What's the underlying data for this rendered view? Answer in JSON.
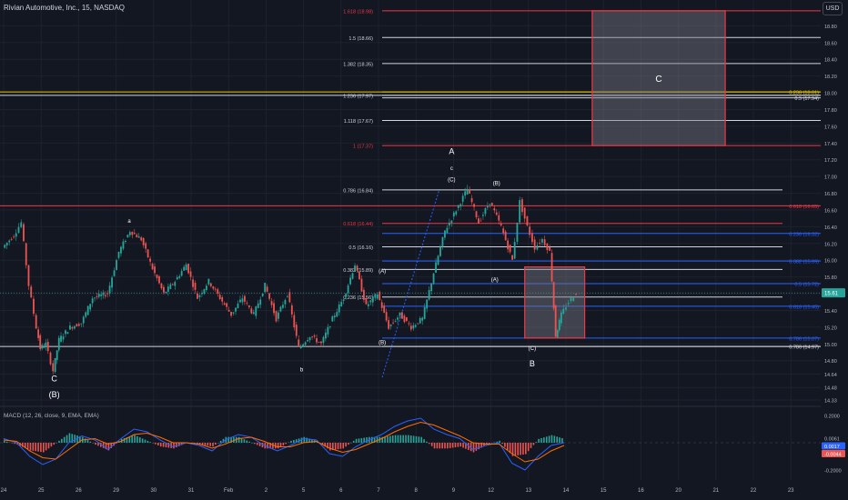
{
  "header": {
    "symbol_line": "Rivian Automotive, Inc., 15, NASDAQ",
    "currency": "USD"
  },
  "colors": {
    "background": "#131722",
    "grid": "#1e222d",
    "up": "#26a69a",
    "down": "#ef5350",
    "fib_white": "#d1d4dc",
    "fib_red": "#f23645",
    "fib_blue": "#2962ff",
    "fib_yellow": "#e6c200",
    "box_fill": "#787b86",
    "macd_line": "#2962ff",
    "signal_line": "#ff6d00"
  },
  "chart_data": [
    {
      "type": "candlestick",
      "name": "price",
      "x_ticks": [
        "24",
        "25",
        "26",
        "29",
        "30",
        "31",
        "Feb",
        "2",
        "5",
        "6",
        "7",
        "8",
        "9",
        "12",
        "13",
        "14",
        "15",
        "16",
        "20",
        "21",
        "22",
        "23"
      ],
      "y_ticks": [
        18.8,
        18.6,
        18.4,
        18.2,
        18.0,
        17.8,
        17.6,
        17.4,
        17.2,
        17.0,
        16.8,
        16.6,
        16.4,
        16.2,
        16.0,
        15.8,
        15.6,
        15.4,
        15.2,
        15.0,
        14.8,
        14.64,
        14.48,
        14.33
      ],
      "ylim": [
        14.33,
        19.0
      ],
      "last_price": "15.61",
      "price_path": [
        [
          0,
          16.15
        ],
        [
          0.3,
          16.3
        ],
        [
          0.5,
          16.45
        ],
        [
          0.7,
          15.7
        ],
        [
          0.9,
          15.2
        ],
        [
          1.0,
          14.95
        ],
        [
          1.15,
          15.0
        ],
        [
          1.35,
          14.68
        ],
        [
          1.5,
          15.05
        ],
        [
          1.8,
          15.2
        ],
        [
          2.1,
          15.25
        ],
        [
          2.4,
          15.55
        ],
        [
          2.8,
          15.6
        ],
        [
          3.1,
          16.1
        ],
        [
          3.4,
          16.35
        ],
        [
          3.7,
          16.25
        ],
        [
          4.0,
          15.9
        ],
        [
          4.3,
          15.6
        ],
        [
          4.6,
          15.75
        ],
        [
          4.9,
          15.95
        ],
        [
          5.2,
          15.55
        ],
        [
          5.5,
          15.75
        ],
        [
          5.8,
          15.55
        ],
        [
          6.1,
          15.35
        ],
        [
          6.4,
          15.55
        ],
        [
          6.7,
          15.35
        ],
        [
          7.0,
          15.7
        ],
        [
          7.3,
          15.3
        ],
        [
          7.6,
          15.6
        ],
        [
          7.9,
          14.95
        ],
        [
          8.2,
          15.1
        ],
        [
          8.5,
          15.0
        ],
        [
          8.8,
          15.3
        ],
        [
          9.1,
          15.55
        ],
        [
          9.4,
          15.95
        ],
        [
          9.7,
          15.45
        ],
        [
          10.0,
          15.6
        ],
        [
          10.3,
          15.2
        ],
        [
          10.6,
          15.35
        ],
        [
          10.9,
          15.2
        ],
        [
          11.2,
          15.3
        ],
        [
          11.5,
          15.85
        ],
        [
          11.8,
          16.35
        ],
        [
          12.1,
          16.6
        ],
        [
          12.4,
          16.85
        ],
        [
          12.7,
          16.45
        ],
        [
          13.0,
          16.7
        ],
        [
          13.3,
          16.4
        ],
        [
          13.6,
          16.0
        ],
        [
          13.8,
          16.7
        ],
        [
          14.0,
          16.4
        ],
        [
          14.2,
          16.15
        ],
        [
          14.4,
          16.25
        ],
        [
          14.6,
          16.1
        ],
        [
          14.75,
          15.1
        ],
        [
          14.9,
          15.35
        ],
        [
          15.1,
          15.5
        ],
        [
          15.3,
          15.61
        ]
      ],
      "fib_levels": [
        {
          "label": "1.618 (18.98)",
          "price": 18.98,
          "color": "red",
          "side": "left"
        },
        {
          "label": "1.5 (18.66)",
          "price": 18.66,
          "color": "white",
          "side": "left"
        },
        {
          "label": "1.382 (18.35)",
          "price": 18.35,
          "color": "white",
          "side": "left"
        },
        {
          "label": "1.236 (17.97)",
          "price": 17.97,
          "color": "white",
          "side": "left"
        },
        {
          "label": "1.118 (17.67)",
          "price": 17.67,
          "color": "white",
          "side": "left"
        },
        {
          "label": "1 (17.37)",
          "price": 17.37,
          "color": "red",
          "side": "left"
        },
        {
          "label": "0.786 (16.84)",
          "price": 16.84,
          "color": "white",
          "side": "left"
        },
        {
          "label": "0.618 (16.44)",
          "price": 16.44,
          "color": "red",
          "side": "left"
        },
        {
          "label": "0.5 (16.16)",
          "price": 16.16,
          "color": "white",
          "side": "left"
        },
        {
          "label": "0.382 (15.89)",
          "price": 15.89,
          "color": "white",
          "side": "left"
        },
        {
          "label": "0.236 (15.56)",
          "price": 15.56,
          "color": "white",
          "side": "left"
        },
        {
          "label": "0.236 (18.01)",
          "price": 18.01,
          "color": "yellow",
          "side": "right"
        },
        {
          "label": "0.5 (17.94)",
          "price": 17.94,
          "color": "white",
          "side": "right"
        },
        {
          "label": "0.618 (16.65)",
          "price": 16.65,
          "color": "red",
          "side": "right"
        },
        {
          "label": "0.236 (16.32)",
          "price": 16.32,
          "color": "blue",
          "side": "right"
        },
        {
          "label": "0.382 (15.99)",
          "price": 15.99,
          "color": "blue",
          "side": "right"
        },
        {
          "label": "0.5 (15.72)",
          "price": 15.72,
          "color": "blue",
          "side": "right"
        },
        {
          "label": "0.618 (15.45)",
          "price": 15.45,
          "color": "blue",
          "side": "right"
        },
        {
          "label": "0.786 (15.07)",
          "price": 15.07,
          "color": "blue",
          "side": "right"
        },
        {
          "label": "0.786 (14.97)",
          "price": 14.97,
          "color": "white",
          "side": "right"
        }
      ],
      "zones": [
        {
          "label": "C",
          "from_x": 15.7,
          "to_x": 19.25,
          "low": 17.37,
          "high": 18.98
        },
        {
          "label": "",
          "from_x": 13.9,
          "to_x": 15.5,
          "low": 15.07,
          "high": 15.92
        }
      ],
      "wave_labels": [
        {
          "text": "a",
          "x": 3.35,
          "price": 16.45
        },
        {
          "text": "b",
          "x": 7.95,
          "price": 14.67
        },
        {
          "text": "C",
          "x": 1.35,
          "price": 14.55
        },
        {
          "text": "(B)",
          "x": 1.35,
          "price": 14.36
        },
        {
          "text": "A",
          "x": 11.95,
          "price": 17.27
        },
        {
          "text": "c",
          "x": 11.95,
          "price": 17.08
        },
        {
          "text": "(C)",
          "x": 11.95,
          "price": 16.94
        },
        {
          "text": "(B)",
          "x": 13.15,
          "price": 16.9
        },
        {
          "text": "(A)",
          "x": 10.1,
          "price": 15.85
        },
        {
          "text": "(B)",
          "x": 10.1,
          "price": 15.0
        },
        {
          "text": "(A)",
          "x": 13.1,
          "price": 15.75
        },
        {
          "text": "(C)",
          "x": 14.1,
          "price": 14.93
        },
        {
          "text": "B",
          "x": 14.1,
          "price": 14.73
        }
      ]
    },
    {
      "type": "line",
      "name": "macd",
      "title": "MACD (12, 26, close, 9, EMA, EMA)",
      "y_ticks": [
        0.2,
        -0.2
      ],
      "ylim": [
        -0.26,
        0.26
      ],
      "value_labels": [
        "0.0061",
        "0.0017",
        "-0.0044"
      ],
      "series": [
        {
          "values": [
            0.03,
            0.0,
            -0.1,
            -0.16,
            -0.12,
            0.0,
            0.05,
            0.02,
            -0.05,
            0.03,
            0.1,
            0.08,
            0.02,
            -0.03,
            0.0,
            -0.02,
            -0.06,
            0.02,
            0.06,
            0.04,
            -0.02,
            -0.06,
            -0.02,
            0.03,
            0.02,
            -0.08,
            -0.1,
            -0.03,
            0.02,
            0.06,
            0.12,
            0.16,
            0.18,
            0.1,
            0.06,
            0.03,
            -0.05,
            -0.02,
            0.0,
            -0.15,
            -0.2,
            -0.1,
            -0.02,
            0.0
          ]
        },
        {
          "values": [
            0.02,
            0.01,
            -0.06,
            -0.11,
            -0.12,
            -0.05,
            0.02,
            0.03,
            -0.01,
            0.01,
            0.06,
            0.07,
            0.04,
            0.0,
            0.0,
            -0.01,
            -0.04,
            -0.01,
            0.03,
            0.04,
            0.01,
            -0.03,
            -0.03,
            0.0,
            0.01,
            -0.04,
            -0.07,
            -0.05,
            -0.01,
            0.03,
            0.08,
            0.12,
            0.15,
            0.13,
            0.09,
            0.05,
            0.0,
            -0.01,
            -0.01,
            -0.08,
            -0.14,
            -0.12,
            -0.06,
            -0.02
          ]
        }
      ]
    }
  ]
}
